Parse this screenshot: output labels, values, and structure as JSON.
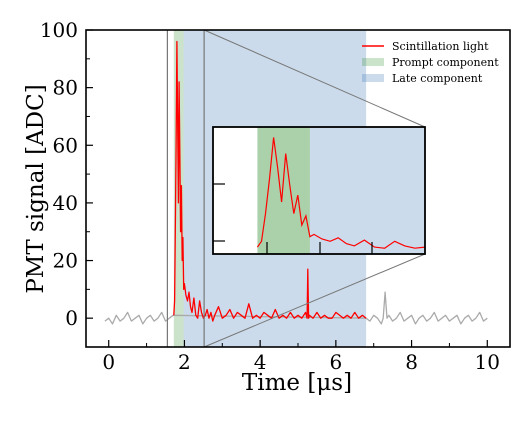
{
  "chart_data": {
    "type": "line",
    "title": "",
    "xlabel": "Time [μs]",
    "ylabel": "PMT signal [ADC]",
    "xlim": [
      -0.6,
      10.6
    ],
    "ylim": [
      -10,
      100
    ],
    "xticks": [
      0,
      2,
      4,
      6,
      8,
      10
    ],
    "yticks": [
      0,
      20,
      40,
      60,
      80,
      100
    ],
    "x_tick_labels": [
      "0",
      "2",
      "4",
      "6",
      "8",
      "10"
    ],
    "y_tick_labels": [
      "0",
      "20",
      "40",
      "60",
      "80",
      "100"
    ],
    "grid": false,
    "legend_position": "top-right",
    "regions": [
      {
        "name": "Prompt component",
        "x": [
          1.72,
          1.98
        ],
        "color": "#2e8b2e"
      },
      {
        "name": "Late component",
        "x": [
          1.98,
          6.8
        ],
        "color": "#2e6fb0"
      }
    ],
    "vertical_lines": [
      1.55,
      2.52
    ],
    "series": [
      {
        "name": "Scintillation light",
        "color": "#ff0000",
        "x": [
          1.72,
          1.74,
          1.76,
          1.78,
          1.8,
          1.82,
          1.84,
          1.86,
          1.88,
          1.9,
          1.92,
          1.94,
          1.96,
          1.98,
          2.0,
          2.04,
          2.08,
          2.12,
          2.16,
          2.2,
          2.25,
          2.3,
          2.35,
          2.4,
          2.45,
          2.5,
          2.55,
          2.6,
          2.65,
          2.7,
          2.75,
          2.8,
          2.9,
          3.0,
          3.1,
          3.2,
          3.3,
          3.4,
          3.5,
          3.6,
          3.7,
          3.8,
          3.9,
          4.0,
          4.1,
          4.2,
          4.3,
          4.4,
          4.5,
          4.6,
          4.7,
          4.8,
          4.9,
          5.0,
          5.1,
          5.2,
          5.24,
          5.26,
          5.28,
          5.3,
          5.4,
          5.5,
          5.6,
          5.7,
          5.8,
          5.9,
          6.0,
          6.1,
          6.2,
          6.3,
          6.4,
          6.5,
          6.6,
          6.7,
          6.8
        ],
        "y": [
          1,
          6,
          30,
          60,
          96,
          70,
          40,
          82,
          55,
          30,
          46,
          20,
          28,
          10,
          12,
          8,
          6,
          9,
          4,
          2,
          7,
          1,
          0,
          6,
          2,
          0,
          1,
          3,
          0,
          2,
          -1,
          1,
          4,
          0,
          1,
          3,
          0,
          2,
          1,
          0,
          5,
          0,
          1,
          0,
          2,
          1,
          0,
          3,
          0,
          1,
          0,
          2,
          0,
          1,
          0,
          2,
          0,
          17,
          0,
          1,
          0,
          2,
          0,
          1,
          0,
          0,
          2,
          1,
          0,
          1,
          0,
          2,
          0,
          1,
          0
        ]
      },
      {
        "name": "",
        "color": "#aaaaaa",
        "x": [
          -0.1,
          0.0,
          0.1,
          0.2,
          0.3,
          0.4,
          0.5,
          0.6,
          0.7,
          0.8,
          0.9,
          1.0,
          1.1,
          1.2,
          1.3,
          1.4,
          1.5,
          1.6,
          1.7,
          6.8,
          6.9,
          7.0,
          7.1,
          7.2,
          7.25,
          7.3,
          7.35,
          7.4,
          7.5,
          7.6,
          7.7,
          7.8,
          7.9,
          8.0,
          8.1,
          8.2,
          8.3,
          8.4,
          8.5,
          8.6,
          8.7,
          8.8,
          8.9,
          9.0,
          9.1,
          9.2,
          9.3,
          9.4,
          9.5,
          9.6,
          9.7,
          9.8,
          9.9,
          10.0
        ],
        "y": [
          -1,
          0,
          -2,
          1,
          -1,
          0,
          2,
          -1,
          0,
          1,
          -2,
          0,
          1,
          -1,
          0,
          2,
          -1,
          0,
          1,
          0,
          -1,
          1,
          0,
          -2,
          0,
          9,
          0,
          1,
          -1,
          0,
          2,
          -1,
          0,
          1,
          -2,
          0,
          1,
          -1,
          0,
          2,
          -1,
          0,
          1,
          -1,
          0,
          1,
          -2,
          0,
          1,
          -1,
          0,
          2,
          -1,
          0
        ]
      }
    ],
    "inset": {
      "xlim": [
        1.5,
        2.55
      ],
      "ylim": [
        -5,
        105
      ],
      "prompt_region": [
        1.72,
        1.98
      ],
      "series": "Scintillation light"
    }
  },
  "legend": {
    "items": [
      "Scintillation light",
      "Prompt component",
      "Late component"
    ]
  }
}
